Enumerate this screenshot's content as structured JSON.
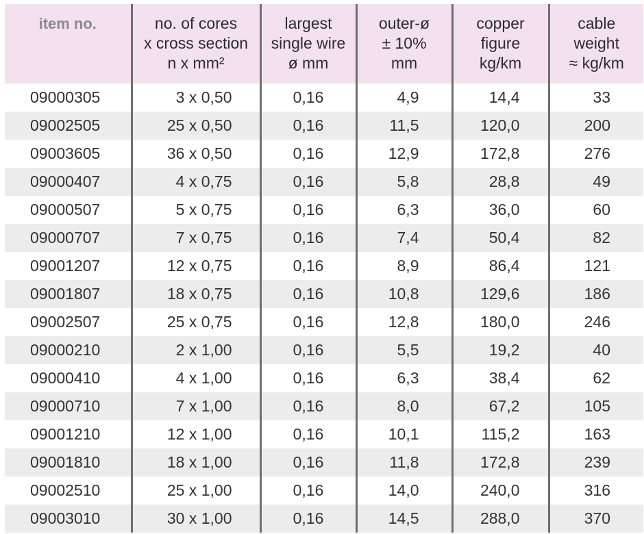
{
  "headers": [
    [
      "item no."
    ],
    [
      "no. of cores",
      "x cross section",
      "n x mm²"
    ],
    [
      "largest",
      "single wire",
      "ø mm"
    ],
    [
      "outer-ø",
      "± 10%",
      "mm"
    ],
    [
      "copper",
      "figure",
      "kg/km"
    ],
    [
      "cable",
      "weight",
      "≈ kg/km"
    ]
  ],
  "rows": [
    [
      "09000305",
      "3 x 0,50",
      "0,16",
      "4,9",
      "14,4",
      "33"
    ],
    [
      "09002505",
      "25 x 0,50",
      "0,16",
      "11,5",
      "120,0",
      "200"
    ],
    [
      "09003605",
      "36 x 0,50",
      "0,16",
      "12,9",
      "172,8",
      "276"
    ],
    [
      "09000407",
      "4 x 0,75",
      "0,16",
      "5,8",
      "28,8",
      "49"
    ],
    [
      "09000507",
      "5 x 0,75",
      "0,16",
      "6,3",
      "36,0",
      "60"
    ],
    [
      "09000707",
      "7 x 0,75",
      "0,16",
      "7,4",
      "50,4",
      "82"
    ],
    [
      "09001207",
      "12 x 0,75",
      "0,16",
      "8,9",
      "86,4",
      "121"
    ],
    [
      "09001807",
      "18 x 0,75",
      "0,16",
      "10,8",
      "129,6",
      "186"
    ],
    [
      "09002507",
      "25 x 0,75",
      "0,16",
      "12,8",
      "180,0",
      "246"
    ],
    [
      "09000210",
      "2 x 1,00",
      "0,16",
      "5,5",
      "19,2",
      "40"
    ],
    [
      "09000410",
      "4 x 1,00",
      "0,16",
      "6,3",
      "38,4",
      "62"
    ],
    [
      "09000710",
      "7 x 1,00",
      "0,16",
      "8,0",
      "67,2",
      "105"
    ],
    [
      "09001210",
      "12 x 1,00",
      "0,16",
      "10,1",
      "115,2",
      "163"
    ],
    [
      "09001810",
      "18 x 1,00",
      "0,16",
      "11,8",
      "172,8",
      "239"
    ],
    [
      "09002510",
      "25 x 1,00",
      "0,16",
      "14,0",
      "240,0",
      "316"
    ],
    [
      "09003010",
      "30 x 1,00",
      "0,16",
      "14,5",
      "288,0",
      "370"
    ]
  ]
}
